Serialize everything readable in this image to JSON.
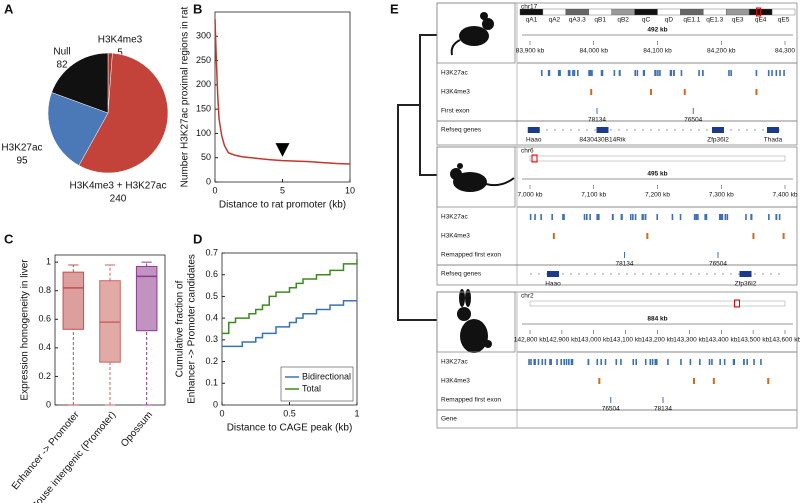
{
  "panel_labels": [
    "A",
    "B",
    "C",
    "D",
    "E"
  ],
  "chart_data": [
    {
      "type": "pie",
      "categories": [
        "H3K4me3",
        "H3K4me3 + H3K27ac",
        "H3K27ac",
        "Null"
      ],
      "values": [
        5,
        240,
        95,
        82
      ],
      "colors": [
        "#a8342a",
        "#c3433a",
        "#4b78b6",
        "#111111"
      ]
    },
    {
      "type": "line",
      "x_label": "Distance to rat promoter (kb)",
      "y_label": "Number H3K27ac proximal regions in rat",
      "x": [
        0,
        0.1,
        0.2,
        0.3,
        0.5,
        0.7,
        1,
        1.5,
        2,
        3,
        4,
        5,
        6,
        7,
        8,
        9,
        10
      ],
      "values": [
        335,
        250,
        180,
        130,
        95,
        75,
        60,
        55,
        52,
        49,
        46,
        44,
        43,
        42,
        40,
        38,
        37
      ],
      "color": "#c0392b",
      "xlim": [
        0,
        10
      ],
      "ylim": [
        0,
        350
      ],
      "xticks": [
        0,
        5,
        10
      ],
      "yticks": [
        0,
        50,
        100,
        150,
        200,
        250,
        300
      ],
      "arrow_x": 5
    },
    {
      "type": "box",
      "y_label": "Expression homogeneity in liver",
      "categories": [
        "Enhancer -> Promoter",
        "Mouse intergenic (Promoter)",
        "Opossum"
      ],
      "boxes": [
        {
          "min": 0,
          "q1": 0.53,
          "median": 0.82,
          "q3": 0.93,
          "max": 0.98
        },
        {
          "min": 0,
          "q1": 0.3,
          "median": 0.58,
          "q3": 0.87,
          "max": 0.98
        },
        {
          "min": 0,
          "q1": 0.52,
          "median": 0.9,
          "q3": 0.97,
          "max": 1
        }
      ],
      "colors": [
        "#c0504d",
        "#c9655f",
        "#8e3b8e"
      ],
      "ylim": [
        0,
        1.05
      ],
      "yticks": [
        0,
        0.2,
        0.4,
        0.6,
        0.8,
        1
      ]
    },
    {
      "type": "step",
      "x_label": "Distance to CAGE peak (kb)",
      "y_label": [
        "Cumulative fraction of",
        "Enhancer -> Promoter candidates"
      ],
      "series": [
        {
          "name": "Bidirectional",
          "color": "#3a72b8",
          "x": [
            0,
            0.1,
            0.15,
            0.25,
            0.3,
            0.4,
            0.5,
            0.55,
            0.6,
            0.7,
            0.8,
            0.9,
            1
          ],
          "values": [
            0.27,
            0.27,
            0.29,
            0.31,
            0.33,
            0.36,
            0.38,
            0.4,
            0.42,
            0.44,
            0.46,
            0.48,
            0.48
          ]
        },
        {
          "name": "Total",
          "color": "#3c8a1e",
          "x": [
            0,
            0.05,
            0.1,
            0.2,
            0.25,
            0.3,
            0.35,
            0.4,
            0.5,
            0.55,
            0.6,
            0.7,
            0.8,
            0.9,
            1
          ],
          "values": [
            0.33,
            0.38,
            0.4,
            0.42,
            0.44,
            0.46,
            0.5,
            0.52,
            0.54,
            0.56,
            0.58,
            0.6,
            0.62,
            0.65,
            0.67
          ]
        }
      ],
      "xlim": [
        0,
        1
      ],
      "ylim": [
        0,
        0.7
      ],
      "xticks": [
        0,
        0.5,
        1
      ],
      "yticks": [
        0,
        0.1,
        0.2,
        0.3,
        0.4,
        0.5,
        0.6,
        0.7
      ],
      "legend": "lower right"
    }
  ],
  "genome_browser": {
    "species": [
      {
        "chromosome": "chr17",
        "bands": [
          "qA1",
          "qA2",
          "qA3.3",
          "qB1",
          "qB2",
          "qC",
          "qD",
          "qE1.1",
          "qE1.3",
          "qE3",
          "qE4",
          "qE5"
        ],
        "span": "492 kb",
        "coords": [
          "83,900 kb",
          "84,000 kb",
          "84,100 kb",
          "84,200 kb",
          "84,300"
        ],
        "tracks": [
          "H3K27ac",
          "H3K4me3",
          "First exon",
          "Refseq genes"
        ],
        "exon_labels": [
          "78134",
          "76504"
        ],
        "genes": [
          "Haao",
          "8430430B14Rik",
          "Zfp36l2",
          "Thada"
        ]
      },
      {
        "chromosome": "chr6",
        "bands": [],
        "span": "495 kb",
        "coords": [
          "7,000 kb",
          "7,100 kb",
          "7,200 kb",
          "7,300 kb",
          "7,400 kb"
        ],
        "tracks": [
          "H3K27ac",
          "H3K4me3",
          "Remapped first exon",
          "Refseq genes"
        ],
        "exon_labels": [
          "78134",
          "76504"
        ],
        "genes": [
          "Haao",
          "Zfp36l2"
        ]
      },
      {
        "chromosome": "chr2",
        "bands": [],
        "span": "884 kb",
        "coords": [
          "142,800 kb",
          "142,900 kb",
          "143,000 kb",
          "143,100 kb",
          "143,200 kb",
          "143,300 kb",
          "143,400 kb",
          "143,500 kb",
          "143,600 kb"
        ],
        "tracks": [
          "H3K27ac",
          "H3K4me3",
          "Remapped first exon",
          "Gene"
        ],
        "exon_labels": [
          "76504",
          "78134"
        ],
        "genes": []
      }
    ]
  }
}
